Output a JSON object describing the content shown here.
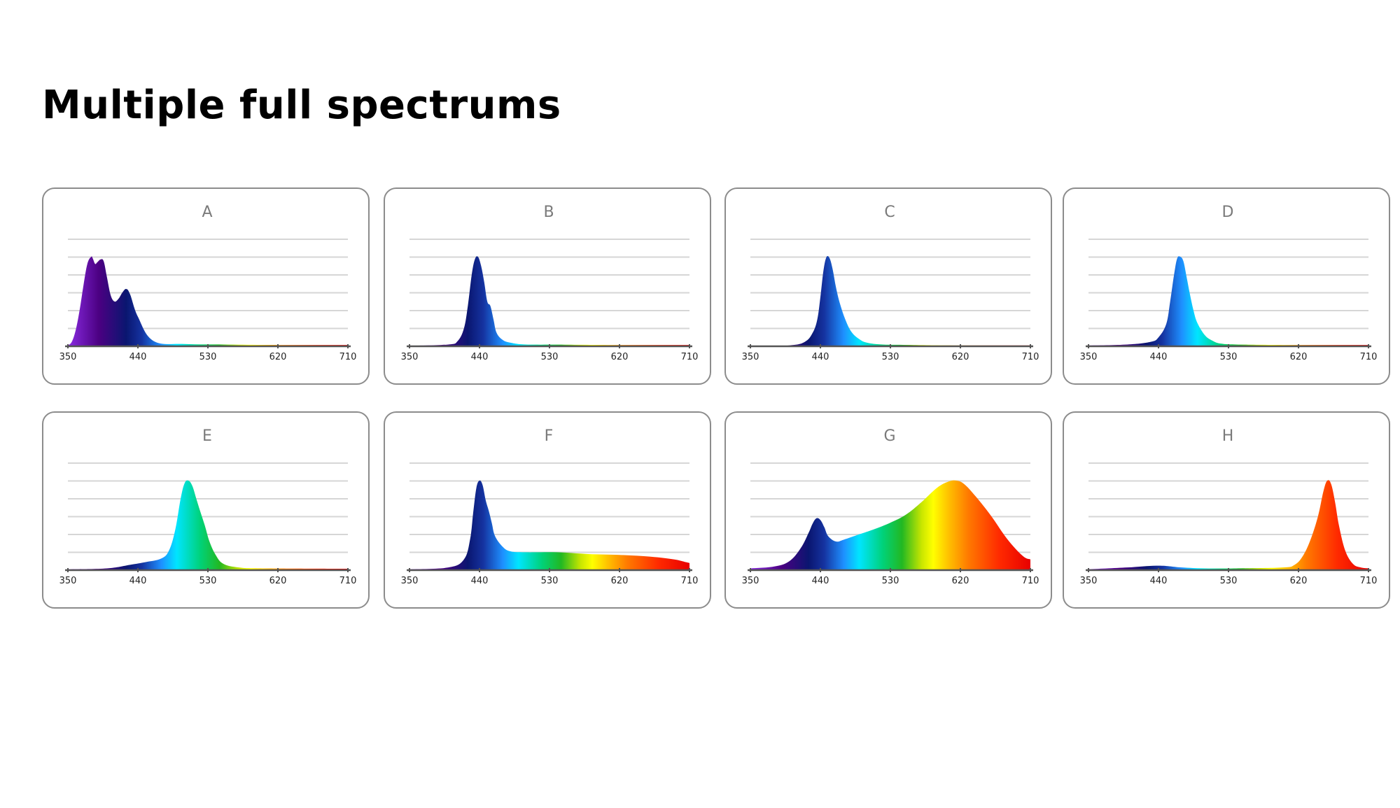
{
  "page": {
    "title": "Multiple full spectrums"
  },
  "chart_data": [
    {
      "type": "area",
      "title": "A",
      "xlabel": "",
      "ylabel": "",
      "xlim": [
        350,
        710
      ],
      "ylim": [
        0,
        1
      ],
      "x_ticks": [
        "350",
        "440",
        "530",
        "620",
        "710"
      ],
      "grid": true,
      "x": [
        350,
        355,
        360,
        365,
        370,
        375,
        380,
        382,
        385,
        388,
        392,
        396,
        400,
        405,
        410,
        415,
        420,
        425,
        430,
        440,
        460,
        500,
        550,
        600,
        650,
        710
      ],
      "values": [
        0.01,
        0.05,
        0.18,
        0.4,
        0.68,
        0.92,
        1.0,
        0.98,
        0.92,
        0.94,
        0.97,
        0.95,
        0.78,
        0.57,
        0.5,
        0.53,
        0.6,
        0.64,
        0.58,
        0.33,
        0.06,
        0.025,
        0.02,
        0.016,
        0.015,
        0.015
      ]
    },
    {
      "type": "area",
      "title": "B",
      "xlabel": "",
      "ylabel": "",
      "xlim": [
        350,
        710
      ],
      "ylim": [
        0,
        1
      ],
      "x_ticks": [
        "350",
        "440",
        "530",
        "620",
        "710"
      ],
      "grid": true,
      "x": [
        350,
        400,
        412,
        420,
        425,
        430,
        434,
        438,
        442,
        446,
        450,
        454,
        458,
        462,
        470,
        480,
        500,
        550,
        620,
        710
      ],
      "values": [
        0.005,
        0.02,
        0.06,
        0.2,
        0.45,
        0.8,
        0.97,
        1.0,
        0.9,
        0.72,
        0.5,
        0.45,
        0.3,
        0.15,
        0.07,
        0.04,
        0.02,
        0.018,
        0.015,
        0.015
      ]
    },
    {
      "type": "area",
      "title": "C",
      "xlabel": "",
      "ylabel": "",
      "xlim": [
        350,
        710
      ],
      "ylim": [
        0,
        1
      ],
      "x_ticks": [
        "350",
        "440",
        "530",
        "620",
        "710"
      ],
      "grid": true,
      "x": [
        350,
        400,
        420,
        430,
        436,
        440,
        444,
        448,
        452,
        456,
        460,
        465,
        472,
        480,
        490,
        500,
        520,
        560,
        620,
        710
      ],
      "values": [
        0.005,
        0.01,
        0.05,
        0.15,
        0.3,
        0.55,
        0.85,
        1.0,
        0.98,
        0.85,
        0.66,
        0.48,
        0.3,
        0.16,
        0.08,
        0.04,
        0.02,
        0.015,
        0.01,
        0.01
      ]
    },
    {
      "type": "area",
      "title": "D",
      "xlabel": "",
      "ylabel": "",
      "xlim": [
        350,
        710
      ],
      "ylim": [
        0,
        1
      ],
      "x_ticks": [
        "350",
        "440",
        "530",
        "620",
        "710"
      ],
      "grid": true,
      "x": [
        350,
        400,
        430,
        440,
        450,
        455,
        460,
        464,
        468,
        472,
        476,
        480,
        485,
        490,
        500,
        510,
        520,
        540,
        600,
        710
      ],
      "values": [
        0.01,
        0.02,
        0.05,
        0.1,
        0.25,
        0.5,
        0.8,
        0.98,
        1.0,
        0.95,
        0.78,
        0.6,
        0.4,
        0.26,
        0.12,
        0.06,
        0.03,
        0.02,
        0.015,
        0.015
      ]
    },
    {
      "type": "area",
      "title": "E",
      "xlabel": "",
      "ylabel": "",
      "xlim": [
        350,
        710
      ],
      "ylim": [
        0,
        1
      ],
      "x_ticks": [
        "350",
        "440",
        "530",
        "620",
        "710"
      ],
      "grid": true,
      "x": [
        350,
        400,
        430,
        450,
        470,
        480,
        488,
        495,
        500,
        505,
        510,
        515,
        520,
        526,
        532,
        540,
        550,
        570,
        600,
        710
      ],
      "values": [
        0.01,
        0.02,
        0.06,
        0.09,
        0.13,
        0.22,
        0.45,
        0.8,
        0.97,
        1.0,
        0.94,
        0.8,
        0.66,
        0.5,
        0.32,
        0.17,
        0.07,
        0.03,
        0.02,
        0.015
      ]
    },
    {
      "type": "area",
      "title": "F",
      "xlabel": "",
      "ylabel": "",
      "xlim": [
        350,
        710
      ],
      "ylim": [
        0,
        1
      ],
      "x_ticks": [
        "350",
        "440",
        "530",
        "620",
        "710"
      ],
      "grid": true,
      "x": [
        350,
        400,
        420,
        428,
        432,
        436,
        440,
        444,
        448,
        452,
        456,
        460,
        470,
        480,
        500,
        540,
        580,
        620,
        660,
        690,
        705,
        710
      ],
      "values": [
        0.01,
        0.03,
        0.12,
        0.35,
        0.65,
        0.92,
        1.0,
        0.95,
        0.78,
        0.66,
        0.52,
        0.38,
        0.26,
        0.21,
        0.2,
        0.2,
        0.18,
        0.17,
        0.15,
        0.12,
        0.09,
        0.08
      ]
    },
    {
      "type": "area",
      "title": "G",
      "xlabel": "",
      "ylabel": "",
      "xlim": [
        350,
        710
      ],
      "ylim": [
        0,
        1
      ],
      "x_ticks": [
        "350",
        "440",
        "530",
        "620",
        "710"
      ],
      "grid": true,
      "x": [
        350,
        380,
        400,
        415,
        425,
        430,
        435,
        440,
        445,
        450,
        460,
        470,
        490,
        510,
        530,
        550,
        570,
        590,
        605,
        615,
        625,
        640,
        660,
        680,
        700,
        710
      ],
      "values": [
        0.02,
        0.04,
        0.1,
        0.25,
        0.42,
        0.52,
        0.58,
        0.56,
        0.48,
        0.38,
        0.32,
        0.34,
        0.4,
        0.46,
        0.53,
        0.62,
        0.76,
        0.92,
        0.99,
        1.0,
        0.96,
        0.82,
        0.6,
        0.35,
        0.16,
        0.12
      ]
    },
    {
      "type": "area",
      "title": "H",
      "xlabel": "",
      "ylabel": "",
      "xlim": [
        350,
        710
      ],
      "ylim": [
        0,
        1
      ],
      "x_ticks": [
        "350",
        "440",
        "530",
        "620",
        "710"
      ],
      "grid": true,
      "x": [
        350,
        400,
        440,
        470,
        500,
        540,
        600,
        615,
        625,
        635,
        645,
        652,
        657,
        662,
        667,
        672,
        680,
        690,
        700,
        710
      ],
      "values": [
        0.01,
        0.03,
        0.05,
        0.03,
        0.02,
        0.02,
        0.03,
        0.06,
        0.15,
        0.33,
        0.6,
        0.88,
        1.0,
        0.96,
        0.76,
        0.5,
        0.22,
        0.07,
        0.03,
        0.02
      ]
    }
  ]
}
